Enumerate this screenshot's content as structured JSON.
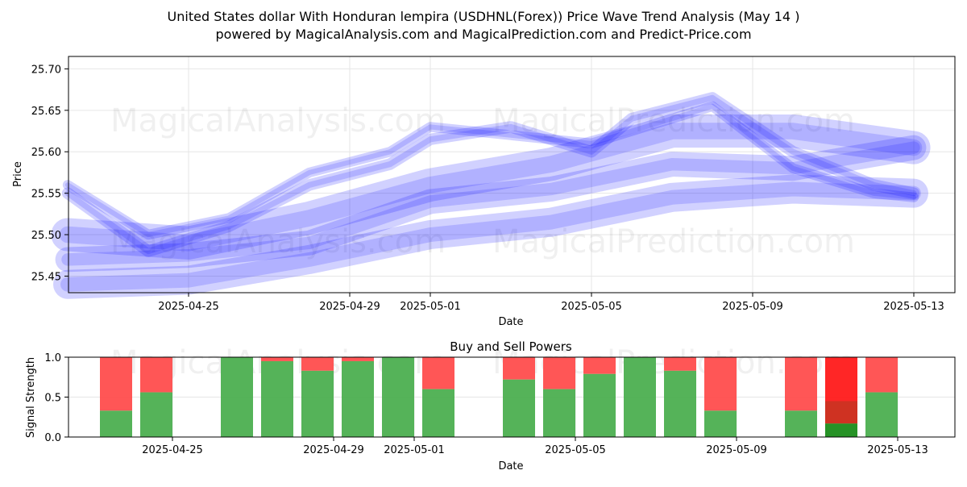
{
  "title_line1": "United States dollar With Honduran lempira (USDHNL(Forex)) Price Wave Trend Analysis (May 14 )",
  "title_line2": "powered by MagicalAnalysis.com and MagicalPrediction.com and Predict-Price.com",
  "watermarks": [
    "MagicalAnalysis.com",
    "MagicalPrediction.com"
  ],
  "colors": {
    "wave": "#0000ff",
    "buy": "#4caf50",
    "sell": "#ff4d4d",
    "buy_dark": "#1a8c1a",
    "sell_dark": "#ff1a1a",
    "sell_mid": "#cc3322"
  },
  "chart_data": [
    {
      "type": "area",
      "title": "",
      "xlabel": "Date",
      "ylabel": "Price",
      "ylim": [
        25.43,
        25.715
      ],
      "yticks": [
        25.45,
        25.5,
        25.55,
        25.6,
        25.65,
        25.7
      ],
      "ytick_labels": [
        "25.45",
        "25.50",
        "25.55",
        "25.60",
        "25.65",
        "25.70"
      ],
      "xticks": [
        "2025-04-25",
        "2025-04-29",
        "2025-05-01",
        "2025-05-05",
        "2025-05-09",
        "2025-05-13"
      ],
      "grid": true,
      "series": [
        {
          "x": [
            "2025-04-22",
            "2025-04-25",
            "2025-04-28",
            "2025-05-01",
            "2025-05-04",
            "2025-05-07",
            "2025-05-10",
            "2025-05-13"
          ],
          "values": [
            25.47,
            25.475,
            25.49,
            25.54,
            25.555,
            25.585,
            25.58,
            25.605
          ],
          "width": 0.03
        },
        {
          "x": [
            "2025-04-22",
            "2025-04-25",
            "2025-04-28",
            "2025-05-01",
            "2025-05-04",
            "2025-05-07",
            "2025-05-10",
            "2025-05-13"
          ],
          "values": [
            25.5,
            25.49,
            25.52,
            25.56,
            25.585,
            25.625,
            25.625,
            25.605
          ],
          "width": 0.04
        },
        {
          "x": [
            "2025-04-22",
            "2025-04-25",
            "2025-04-28",
            "2025-05-01",
            "2025-05-04",
            "2025-05-07",
            "2025-05-10",
            "2025-05-13"
          ],
          "values": [
            25.44,
            25.445,
            25.47,
            25.5,
            25.515,
            25.545,
            25.555,
            25.55
          ],
          "width": 0.035
        },
        {
          "x": [
            "2025-04-22",
            "2025-04-24",
            "2025-04-26",
            "2025-04-28",
            "2025-04-30",
            "2025-05-01",
            "2025-05-03",
            "2025-05-05",
            "2025-05-06",
            "2025-05-08",
            "2025-05-10",
            "2025-05-12",
            "2025-05-13"
          ],
          "values": [
            25.56,
            25.5,
            25.52,
            25.575,
            25.6,
            25.63,
            25.62,
            25.61,
            25.625,
            25.655,
            25.58,
            25.55,
            25.545
          ],
          "width": 0.012
        },
        {
          "x": [
            "2025-04-22",
            "2025-04-24",
            "2025-04-26",
            "2025-04-28",
            "2025-04-30",
            "2025-05-01",
            "2025-05-03",
            "2025-05-05",
            "2025-05-06",
            "2025-05-08",
            "2025-05-10",
            "2025-05-12",
            "2025-05-13"
          ],
          "values": [
            25.55,
            25.48,
            25.51,
            25.56,
            25.585,
            25.615,
            25.63,
            25.6,
            25.64,
            25.665,
            25.6,
            25.56,
            25.55
          ],
          "width": 0.014
        }
      ]
    },
    {
      "type": "bar",
      "title": "Buy and Sell Powers",
      "xlabel": "Date",
      "ylabel": "Signal Strength",
      "ylim": [
        0,
        1.0
      ],
      "yticks": [
        0.0,
        0.5,
        1.0
      ],
      "ytick_labels": [
        "0.0",
        "0.5",
        "1.0"
      ],
      "xticks": [
        "2025-04-25",
        "2025-04-29",
        "2025-05-01",
        "2025-05-05",
        "2025-05-09",
        "2025-05-13"
      ],
      "grid": true,
      "categories": [
        "2025-04-24",
        "2025-04-25",
        "2025-04-27",
        "2025-04-28",
        "2025-04-29",
        "2025-04-30",
        "2025-05-01",
        "2025-05-02",
        "2025-05-04",
        "2025-05-05",
        "2025-05-06",
        "2025-05-07",
        "2025-05-08",
        "2025-05-09",
        "2025-05-11",
        "2025-05-12",
        "2025-05-13"
      ],
      "series": [
        {
          "name": "Buy",
          "values": [
            0.33,
            0.56,
            1.0,
            0.95,
            0.83,
            0.95,
            1.0,
            0.6,
            0.72,
            0.6,
            0.79,
            1.0,
            0.83,
            0.33,
            0.33,
            0.17,
            0.56
          ]
        },
        {
          "name": "Sell",
          "values": [
            0.67,
            0.44,
            0.0,
            0.05,
            0.17,
            0.05,
            0.0,
            0.4,
            0.28,
            0.4,
            0.21,
            0.0,
            0.17,
            0.67,
            0.67,
            0.83,
            0.44
          ]
        }
      ]
    }
  ]
}
